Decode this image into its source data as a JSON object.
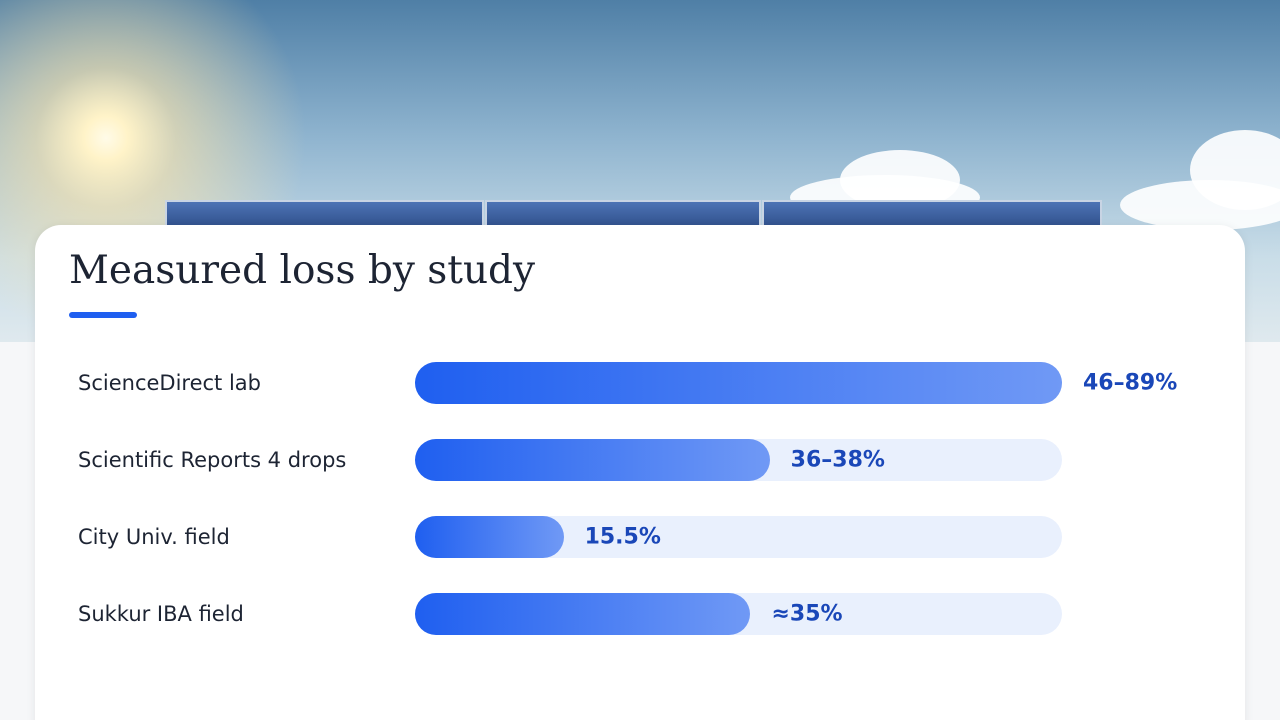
{
  "chart_data": {
    "type": "bar",
    "orientation": "horizontal",
    "title": "Measured loss by study",
    "categories": [
      "ScienceDirect lab",
      "Scientific Reports 4 drops",
      "City Univ. field",
      "Sukkur IBA field"
    ],
    "values": [
      67.5,
      37,
      15.5,
      35
    ],
    "value_labels": [
      "46–89%",
      "36–38%",
      "15.5%",
      "≈35%"
    ],
    "xlim": [
      0,
      67.5
    ],
    "color": "#1f5ff0"
  }
}
